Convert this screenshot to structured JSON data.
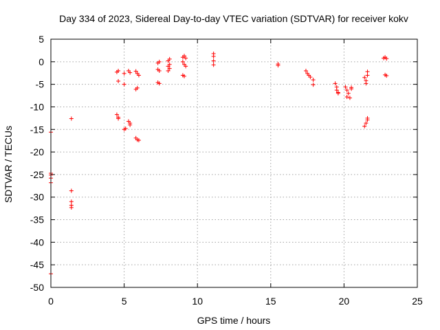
{
  "chart_data": {
    "type": "scatter",
    "title": "Day 334 of 2023, Sidereal Day-to-day VTEC variation (SDTVAR) for receiver kokv",
    "xlabel": "GPS time / hours",
    "ylabel": "SDTVAR / TECUs",
    "xlim": [
      0,
      25
    ],
    "ylim": [
      -50,
      5
    ],
    "xticks": [
      0,
      5,
      10,
      15,
      20,
      25
    ],
    "yticks": [
      5,
      0,
      -5,
      -10,
      -15,
      -20,
      -25,
      -30,
      -35,
      -40,
      -45,
      -50
    ],
    "grid": true,
    "marker": "+",
    "color": "#ff0000",
    "series": [
      {
        "name": "SDTVAR",
        "points": [
          [
            0.0,
            -15.6
          ],
          [
            0.0,
            -24.7
          ],
          [
            0.0,
            -25.1
          ],
          [
            0.0,
            -25.8
          ],
          [
            0.0,
            -26.8
          ],
          [
            0.0,
            -47.0
          ],
          [
            1.4,
            -12.6
          ],
          [
            1.4,
            -28.6
          ],
          [
            1.4,
            -31.0
          ],
          [
            1.4,
            -31.8
          ],
          [
            1.4,
            -32.3
          ],
          [
            4.5,
            -2.3
          ],
          [
            4.6,
            -2.0
          ],
          [
            4.6,
            -4.3
          ],
          [
            4.5,
            -11.7
          ],
          [
            4.6,
            -12.3
          ],
          [
            4.6,
            -12.6
          ],
          [
            5.0,
            -2.6
          ],
          [
            5.0,
            -5.0
          ],
          [
            5.0,
            -15.0
          ],
          [
            5.1,
            -14.8
          ],
          [
            5.3,
            -2.0
          ],
          [
            5.4,
            -2.4
          ],
          [
            5.3,
            -13.2
          ],
          [
            5.4,
            -13.6
          ],
          [
            5.4,
            -14.0
          ],
          [
            5.8,
            -2.1
          ],
          [
            5.9,
            -2.6
          ],
          [
            6.0,
            -3.0
          ],
          [
            5.8,
            -6.1
          ],
          [
            5.9,
            -5.8
          ],
          [
            5.8,
            -16.9
          ],
          [
            5.9,
            -17.3
          ],
          [
            6.0,
            -17.4
          ],
          [
            7.3,
            -0.3
          ],
          [
            7.4,
            0.0
          ],
          [
            7.3,
            -1.7
          ],
          [
            7.4,
            -2.0
          ],
          [
            7.3,
            -4.6
          ],
          [
            7.4,
            -4.8
          ],
          [
            8.0,
            0.2
          ],
          [
            8.1,
            0.6
          ],
          [
            8.0,
            -1.0
          ],
          [
            8.1,
            -1.5
          ],
          [
            8.0,
            -2.0
          ],
          [
            8.1,
            -0.6
          ],
          [
            9.0,
            1.0
          ],
          [
            9.1,
            1.3
          ],
          [
            9.2,
            0.8
          ],
          [
            9.0,
            0.0
          ],
          [
            9.1,
            -0.6
          ],
          [
            9.2,
            -1.0
          ],
          [
            9.0,
            -3.0
          ],
          [
            9.1,
            -3.2
          ],
          [
            11.1,
            1.8
          ],
          [
            11.1,
            1.2
          ],
          [
            11.1,
            0.2
          ],
          [
            11.1,
            -0.7
          ],
          [
            15.5,
            -0.5
          ],
          [
            15.5,
            -0.8
          ],
          [
            17.4,
            -2.0
          ],
          [
            17.5,
            -2.6
          ],
          [
            17.6,
            -3.0
          ],
          [
            17.7,
            -3.4
          ],
          [
            17.9,
            -4.0
          ],
          [
            17.9,
            -5.1
          ],
          [
            19.4,
            -4.8
          ],
          [
            19.5,
            -5.6
          ],
          [
            19.5,
            -6.3
          ],
          [
            19.6,
            -6.8
          ],
          [
            19.6,
            -7.0
          ],
          [
            20.1,
            -5.6
          ],
          [
            20.2,
            -6.3
          ],
          [
            20.3,
            -7.0
          ],
          [
            20.2,
            -7.8
          ],
          [
            20.4,
            -8.0
          ],
          [
            20.5,
            -6.0
          ],
          [
            20.5,
            -5.7
          ],
          [
            21.4,
            -3.5
          ],
          [
            21.5,
            -4.2
          ],
          [
            21.5,
            -4.8
          ],
          [
            21.6,
            -2.2
          ],
          [
            21.6,
            -3.0
          ],
          [
            21.4,
            -14.3
          ],
          [
            21.5,
            -13.6
          ],
          [
            21.6,
            -12.9
          ],
          [
            21.6,
            -12.5
          ],
          [
            22.7,
            0.8
          ],
          [
            22.8,
            1.0
          ],
          [
            22.9,
            0.7
          ],
          [
            22.8,
            -2.9
          ],
          [
            22.9,
            -3.1
          ]
        ]
      }
    ]
  }
}
